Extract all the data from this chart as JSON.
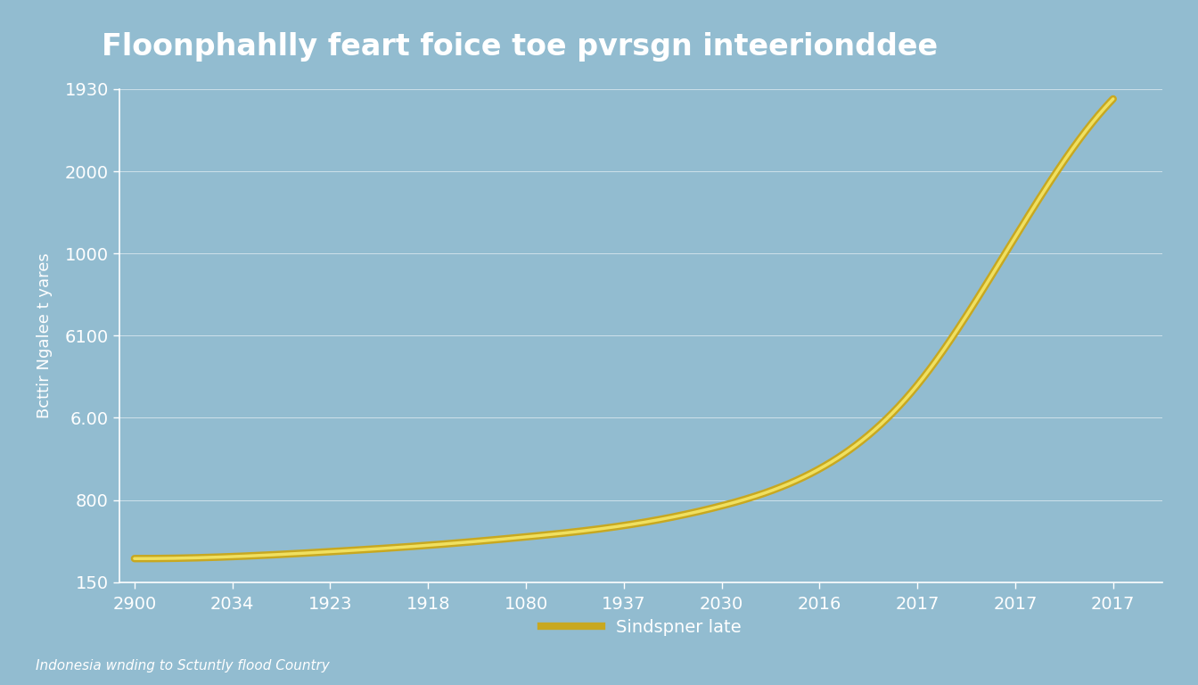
{
  "title": "Floonphahlly feart foice toe pvrsgn inteerionddee",
  "ylabel": "Bcttir Ngalee t yares",
  "background_color": "#92bcd0",
  "line_color_outer": "#c8a820",
  "line_color_inner": "#f0e060",
  "legend_label": "Sindspner late",
  "footnote": "Indonesia wnding to Sctuntly flood Country",
  "x_tick_labels": [
    "2900",
    "2034",
    "1923",
    "1918",
    "1080",
    "1937",
    "2030",
    "2016",
    "2017",
    "2017",
    "2017"
  ],
  "y_tick_labels_bottom_to_top": [
    "150",
    "800",
    "6.00",
    "6100",
    "1000",
    "2000",
    "1930"
  ],
  "title_fontsize": 24,
  "ylabel_fontsize": 13,
  "tick_fontsize": 14,
  "legend_fontsize": 14,
  "footnote_fontsize": 11,
  "x_data": [
    0,
    1,
    2,
    3,
    4,
    5,
    6,
    7,
    8,
    9,
    10
  ],
  "y_data": [
    0.048,
    0.052,
    0.062,
    0.075,
    0.092,
    0.115,
    0.155,
    0.23,
    0.4,
    0.7,
    0.98
  ],
  "y_min": 0.0,
  "y_max": 1.0,
  "x_min": -0.15,
  "x_max": 10.5
}
